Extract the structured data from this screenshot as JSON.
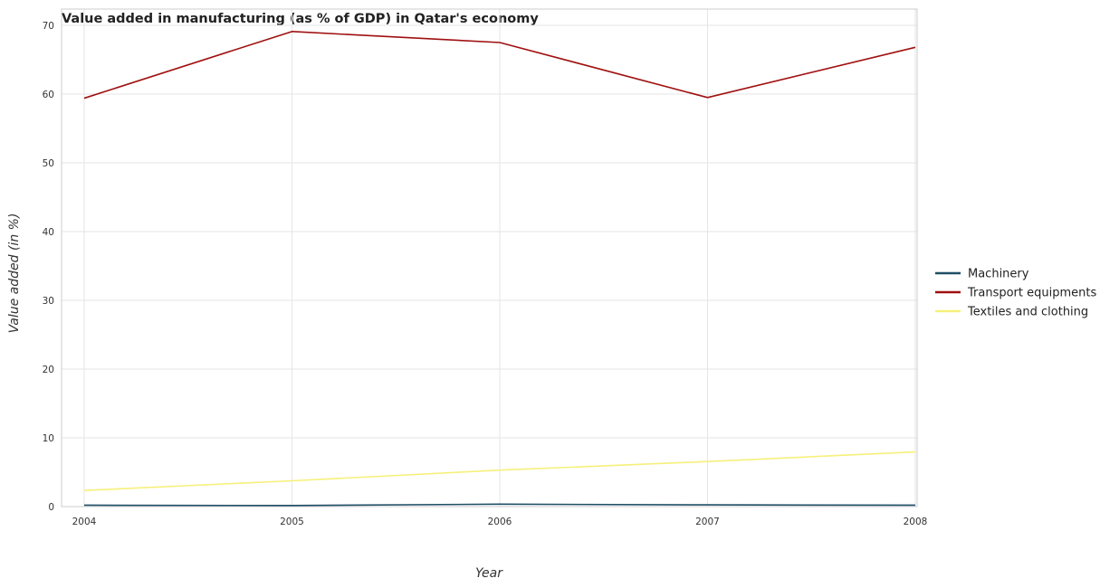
{
  "chart_data": {
    "type": "line",
    "title": "Value added in manufacturing (as % of GDP) in Qatar's economy",
    "xlabel": "Year",
    "ylabel": "Value added (in %)",
    "categories": [
      "2004",
      "2005",
      "2006",
      "2007",
      "2008"
    ],
    "ylim": [
      0,
      70
    ],
    "yticks": [
      "0",
      "10",
      "20",
      "30",
      "40",
      "50",
      "60",
      "70"
    ],
    "grid": true,
    "legend_position": "right",
    "series": [
      {
        "name": "Machinery",
        "color": "#1f4e66",
        "values": [
          0.2,
          0.15,
          0.35,
          0.25,
          0.2
        ]
      },
      {
        "name": "Transport equipments",
        "color": "#a01010",
        "values": [
          59.4,
          69.1,
          67.5,
          59.5,
          66.8
        ]
      },
      {
        "name": "Textiles and clothing",
        "color": "#f6f07a",
        "values": [
          2.35,
          3.75,
          5.3,
          6.55,
          7.95
        ]
      }
    ]
  }
}
